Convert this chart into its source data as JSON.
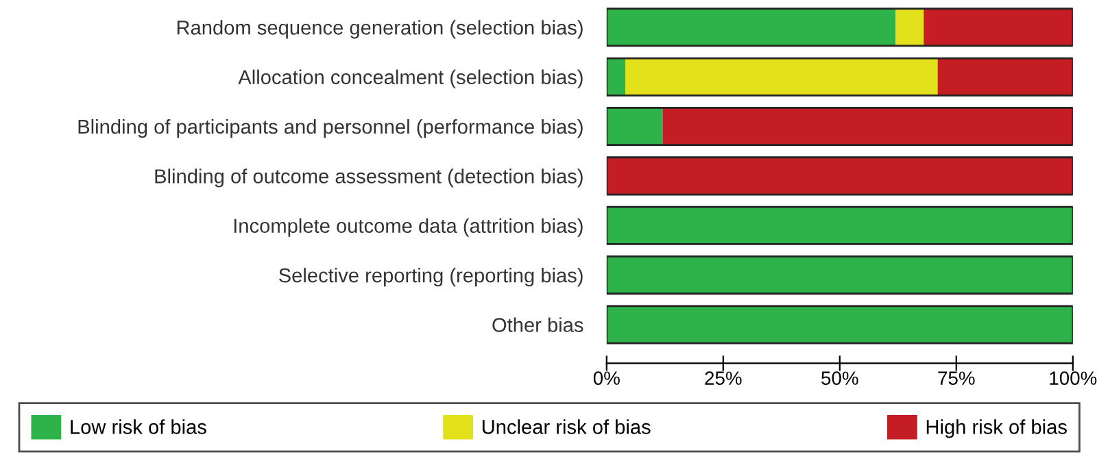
{
  "chart_data": {
    "type": "bar",
    "orientation": "horizontal",
    "stacked": true,
    "categories": [
      "Random sequence generation (selection bias)",
      "Allocation concealment (selection bias)",
      "Blinding of participants and personnel (performance bias)",
      "Blinding of outcome assessment (detection bias)",
      "Incomplete outcome data (attrition bias)",
      "Selective reporting (reporting bias)",
      "Other bias"
    ],
    "series": [
      {
        "name": "Low risk of bias",
        "color": "#2eb34a",
        "values": [
          62,
          4,
          12,
          0,
          100,
          100,
          100
        ]
      },
      {
        "name": "Unclear risk of bias",
        "color": "#e3e01c",
        "values": [
          6,
          67,
          0,
          0,
          0,
          0,
          0
        ]
      },
      {
        "name": "High risk of bias",
        "color": "#c41e24",
        "values": [
          32,
          29,
          88,
          100,
          0,
          0,
          0
        ]
      }
    ],
    "xlim": [
      0,
      100
    ],
    "xticks": [
      {
        "value": 0,
        "label": "0%"
      },
      {
        "value": 25,
        "label": "25%"
      },
      {
        "value": 50,
        "label": "50%"
      },
      {
        "value": 75,
        "label": "75%"
      },
      {
        "value": 100,
        "label": "100%"
      }
    ],
    "grid": false,
    "legend": "bottom"
  }
}
